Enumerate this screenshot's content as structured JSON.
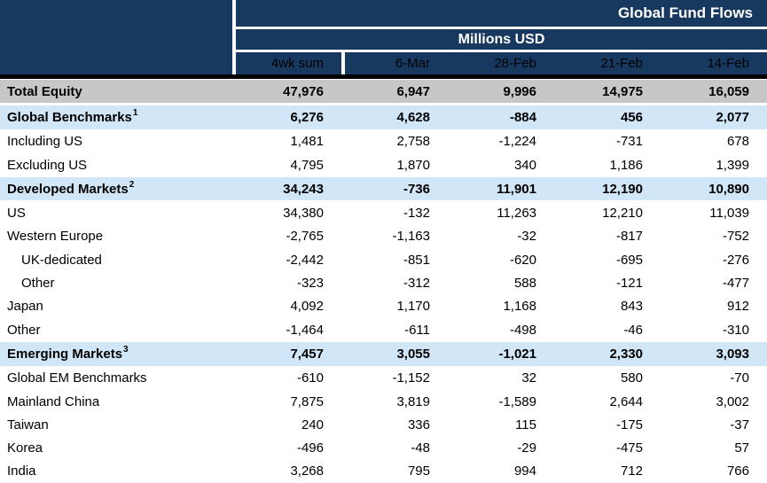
{
  "colors": {
    "header_bg": "#17395f",
    "header_text": "#ffffff",
    "total_row_bg": "#c7c7c7",
    "section_row_bg": "#d1e6f7",
    "body_text": "#000000",
    "divider": "#000000"
  },
  "chart_data": {
    "type": "table",
    "title": "Global Fund Flows",
    "units": "Millions USD",
    "columns": [
      "4wk sum",
      "6-Mar",
      "28-Feb",
      "21-Feb",
      "14-Feb"
    ],
    "rows": [
      {
        "label": "Total Equity",
        "sup": "",
        "style": "total",
        "indent": 0,
        "values": [
          "47,976",
          "6,947",
          "9,996",
          "14,975",
          "16,059"
        ]
      },
      {
        "label": "Global Benchmarks",
        "sup": "1",
        "style": "section",
        "indent": 0,
        "values": [
          "6,276",
          "4,628",
          "-884",
          "456",
          "2,077"
        ]
      },
      {
        "label": "Including US",
        "sup": "",
        "style": "plain",
        "indent": 0,
        "values": [
          "1,481",
          "2,758",
          "-1,224",
          "-731",
          "678"
        ]
      },
      {
        "label": "Excluding US",
        "sup": "",
        "style": "plain",
        "indent": 0,
        "values": [
          "4,795",
          "1,870",
          "340",
          "1,186",
          "1,399"
        ]
      },
      {
        "label": "Developed Markets",
        "sup": "2",
        "style": "section",
        "indent": 0,
        "values": [
          "34,243",
          "-736",
          "11,901",
          "12,190",
          "10,890"
        ]
      },
      {
        "label": "US",
        "sup": "",
        "style": "plain",
        "indent": 0,
        "values": [
          "34,380",
          "-132",
          "11,263",
          "12,210",
          "11,039"
        ]
      },
      {
        "label": "Western Europe",
        "sup": "",
        "style": "plain",
        "indent": 0,
        "values": [
          "-2,765",
          "-1,163",
          "-32",
          "-817",
          "-752"
        ]
      },
      {
        "label": "UK-dedicated",
        "sup": "",
        "style": "plain",
        "indent": 1,
        "values": [
          "-2,442",
          "-851",
          "-620",
          "-695",
          "-276"
        ]
      },
      {
        "label": "Other",
        "sup": "",
        "style": "plain",
        "indent": 1,
        "values": [
          "-323",
          "-312",
          "588",
          "-121",
          "-477"
        ]
      },
      {
        "label": "Japan",
        "sup": "",
        "style": "plain",
        "indent": 0,
        "values": [
          "4,092",
          "1,170",
          "1,168",
          "843",
          "912"
        ]
      },
      {
        "label": "Other",
        "sup": "",
        "style": "plain",
        "indent": 0,
        "values": [
          "-1,464",
          "-611",
          "-498",
          "-46",
          "-310"
        ]
      },
      {
        "label": "Emerging Markets",
        "sup": "3",
        "style": "section",
        "indent": 0,
        "values": [
          "7,457",
          "3,055",
          "-1,021",
          "2,330",
          "3,093"
        ]
      },
      {
        "label": "Global EM Benchmarks",
        "sup": "",
        "style": "plain",
        "indent": 0,
        "values": [
          "-610",
          "-1,152",
          "32",
          "580",
          "-70"
        ]
      },
      {
        "label": "Mainland China",
        "sup": "",
        "style": "plain",
        "indent": 0,
        "values": [
          "7,875",
          "3,819",
          "-1,589",
          "2,644",
          "3,002"
        ]
      },
      {
        "label": "Taiwan",
        "sup": "",
        "style": "plain",
        "indent": 0,
        "values": [
          "240",
          "336",
          "115",
          "-175",
          "-37"
        ]
      },
      {
        "label": "Korea",
        "sup": "",
        "style": "plain",
        "indent": 0,
        "values": [
          "-496",
          "-48",
          "-29",
          "-475",
          "57"
        ]
      },
      {
        "label": "India",
        "sup": "",
        "style": "plain",
        "indent": 0,
        "values": [
          "3,268",
          "795",
          "994",
          "712",
          "766"
        ]
      }
    ]
  }
}
